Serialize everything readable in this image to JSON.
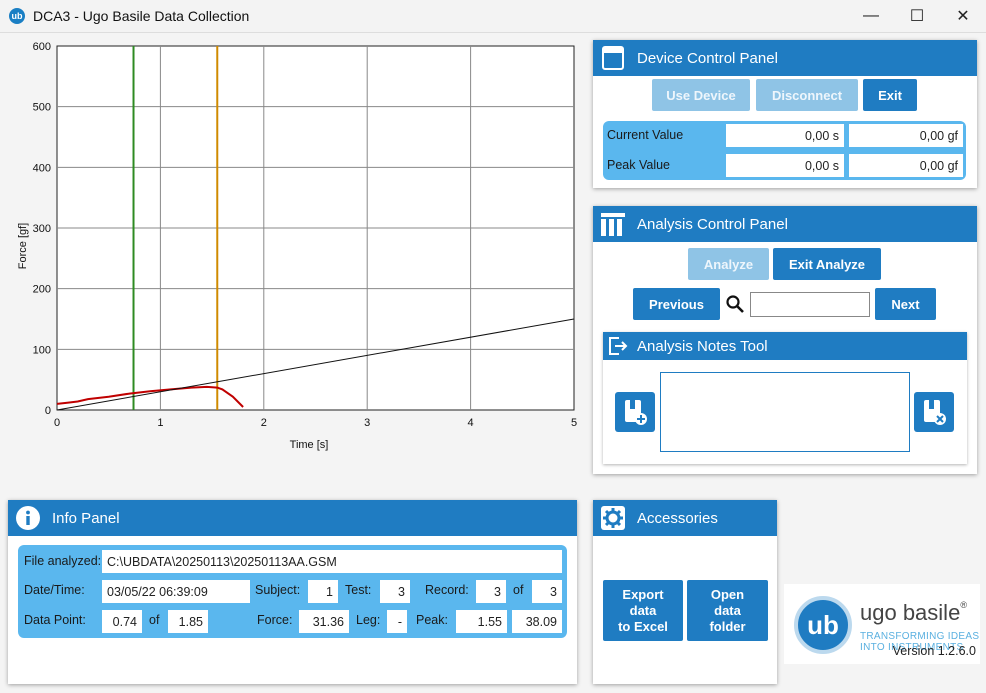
{
  "window": {
    "title": "DCA3 - Ugo Basile Data Collection",
    "icon_text": "ub",
    "controls": {
      "minimize": "—",
      "maximize": "☐",
      "close": "✕"
    }
  },
  "chart_data": {
    "type": "line",
    "xlabel": "Time [s]",
    "ylabel": "Force [gf]",
    "xlim": [
      0,
      5
    ],
    "ylim": [
      0,
      600
    ],
    "x_ticks": [
      "0",
      "1",
      "2",
      "3",
      "4",
      "5"
    ],
    "y_ticks": [
      "0",
      "100",
      "200",
      "300",
      "400",
      "500",
      "600"
    ],
    "grid": true,
    "series": [
      {
        "color": "#c00000",
        "x": [
          0,
          0.1,
          0.2,
          0.3,
          0.5,
          0.7,
          0.9,
          1.1,
          1.3,
          1.45,
          1.55,
          1.6,
          1.7,
          1.8
        ],
        "y": [
          10,
          12,
          14,
          18,
          22,
          27,
          31,
          34,
          37,
          38,
          37,
          34,
          22,
          5
        ]
      },
      {
        "color": "#111111",
        "x": [
          0,
          5
        ],
        "y": [
          0,
          150
        ]
      }
    ],
    "vertical_markers": [
      {
        "x": 0.74,
        "color": "#2e8b22"
      },
      {
        "x": 1.55,
        "color": "#d08a00"
      }
    ]
  },
  "device_panel": {
    "title": "Device Control Panel",
    "use_device": "Use Device",
    "disconnect": "Disconnect",
    "exit": "Exit",
    "current_label": "Current Value",
    "current_time": "0,00 s",
    "current_force": "0,00 gf",
    "peak_label": "Peak Value",
    "peak_time": "0,00 s",
    "peak_force": "0,00 gf"
  },
  "analysis_panel": {
    "title": "Analysis Control Panel",
    "analyze": "Analyze",
    "exit_analyze": "Exit Analyze",
    "previous": "Previous",
    "next": "Next",
    "search_value": "",
    "notes_title": "Analysis Notes Tool",
    "notes_value": ""
  },
  "info_panel": {
    "title": "Info Panel",
    "file_label": "File analyzed:",
    "file_value": "C:\\UBDATA\\20250113\\20250113AA.GSM",
    "datetime_label": "Date/Time:",
    "datetime_value": "03/05/22  06:39:09",
    "subject_label": "Subject:",
    "subject_value": "1",
    "test_label": "Test:",
    "test_value": "3",
    "record_label": "Record:",
    "record_value": "3",
    "record_of": "of",
    "record_total": "3",
    "datapoint_label": "Data Point:",
    "datapoint_value": "0.74",
    "datapoint_of": "of",
    "datapoint_total": "1.85",
    "force_label": "Force:",
    "force_value": "31.36",
    "leg_label": "Leg:",
    "leg_value": "-",
    "peak_label": "Peak:",
    "peak_time": "1.55",
    "peak_force": "38.09"
  },
  "accessories": {
    "title": "Accessories",
    "export_line1": "Export",
    "export_line2": "data",
    "export_line3": "to Excel",
    "open_line1": "Open",
    "open_line2": "data",
    "open_line3": "folder"
  },
  "logo": {
    "mark": "ub",
    "name": "ugo basile",
    "reg": "®",
    "tagline1": "TRANSFORMING IDEAS",
    "tagline2": "INTO INSTRUMENTS"
  },
  "version": "Version 1.2.6.0"
}
